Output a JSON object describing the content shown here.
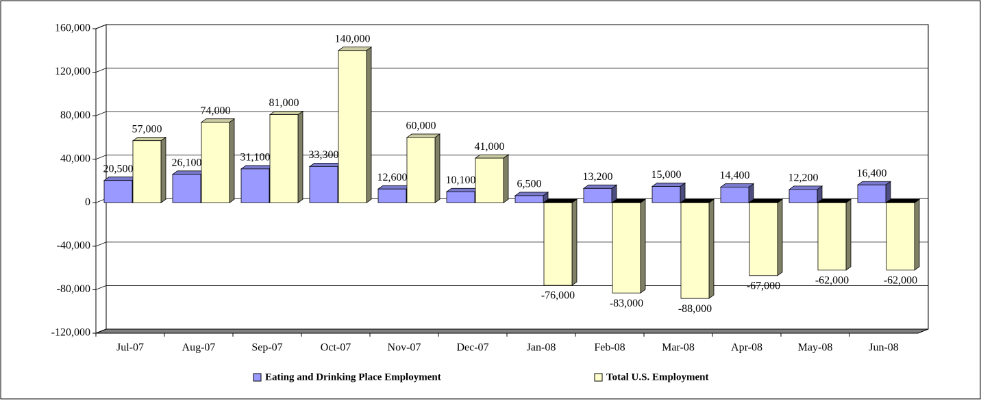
{
  "chart_data": {
    "type": "bar3d",
    "categories": [
      "Jul-07",
      "Aug-07",
      "Sep-07",
      "Oct-07",
      "Nov-07",
      "Dec-07",
      "Jan-08",
      "Feb-08",
      "Mar-08",
      "Apr-08",
      "May-08",
      "Jun-08"
    ],
    "series": [
      {
        "name": "Eating and Drinking Place Employment",
        "color": "#9999ff",
        "values": [
          20500,
          26100,
          31100,
          33300,
          12600,
          10100,
          6500,
          13200,
          15000,
          14400,
          12200,
          16400
        ],
        "value_labels": [
          "20,500",
          "26,100",
          "31,100",
          "33,300",
          "12,600",
          "10,100",
          "6,500",
          "13,200",
          "15,000",
          "14,400",
          "12,200",
          "16,400"
        ]
      },
      {
        "name": "Total U.S. Employment",
        "color": "#ffffcc",
        "values": [
          57000,
          74000,
          81000,
          140000,
          60000,
          41000,
          -76000,
          -83000,
          -88000,
          -67000,
          -62000,
          -62000
        ],
        "value_labels": [
          "57,000",
          "74,000",
          "81,000",
          "140,000",
          "60,000",
          "41,000",
          "-76,000",
          "-83,000",
          "-88,000",
          "-67,000",
          "-62,000",
          "-62,000"
        ]
      }
    ],
    "ylim": [
      -120000,
      160000
    ],
    "yticks": [
      {
        "value": -120000,
        "label": "-120,000"
      },
      {
        "value": -80000,
        "label": "-80,000"
      },
      {
        "value": -40000,
        "label": "-40,000"
      },
      0,
      {
        "value": 40000,
        "label": "40,000"
      },
      {
        "value": 80000,
        "label": "80,000"
      },
      {
        "value": 120000,
        "label": "120,000"
      },
      {
        "value": 160000,
        "label": "160,000"
      }
    ],
    "grid": true,
    "legend": "bottom"
  }
}
